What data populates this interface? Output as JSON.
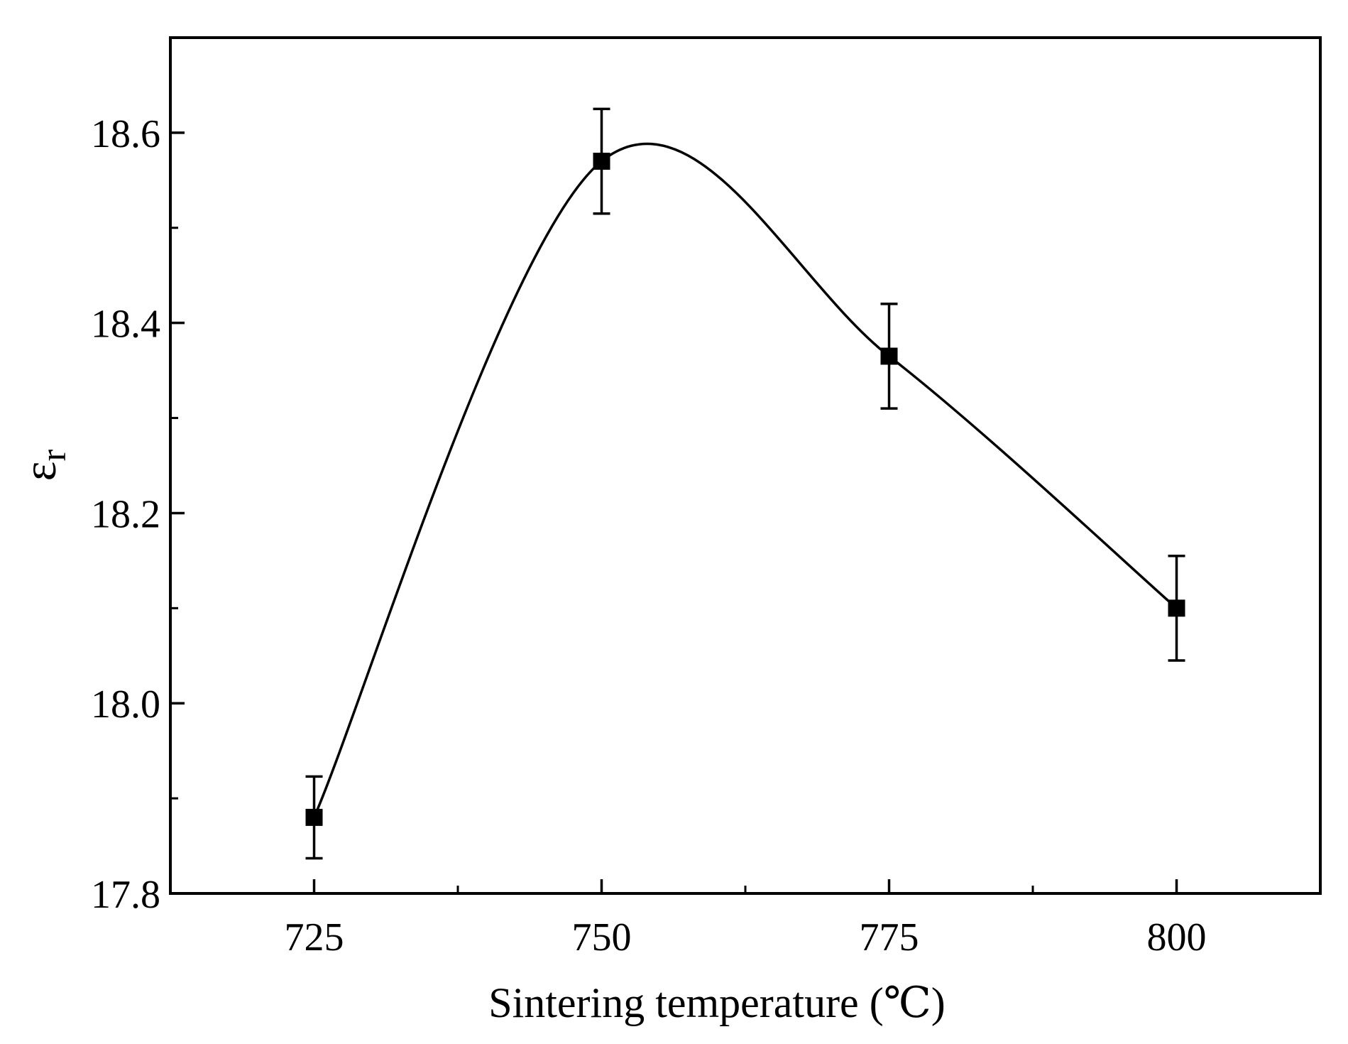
{
  "chart_data": {
    "type": "line",
    "title": "",
    "xlabel": "Sintering temperature (℃)",
    "ylabel": "ε",
    "ylabel_subscript": "r",
    "xlim": [
      712.5,
      812.5
    ],
    "ylim": [
      17.8,
      18.7
    ],
    "xticks": [
      725,
      750,
      775,
      800
    ],
    "xtick_labels": [
      "725",
      "750",
      "775",
      "800"
    ],
    "xminor_ticks": [
      737.5,
      762.5,
      787.5
    ],
    "yticks": [
      17.8,
      18.0,
      18.2,
      18.4,
      18.6
    ],
    "ytick_labels": [
      "17.8",
      "18.0",
      "18.2",
      "18.4",
      "18.6"
    ],
    "yminor_ticks": [
      17.9,
      18.1,
      18.3,
      18.5
    ],
    "grid": false,
    "legend": "none",
    "marker": "square",
    "line_style": "smooth spline",
    "series": [
      {
        "name": "εr",
        "x": [
          725,
          750,
          775,
          800
        ],
        "y": [
          17.88,
          18.57,
          18.365,
          18.1
        ],
        "error": [
          0.043,
          0.055,
          0.055,
          0.055
        ]
      }
    ]
  }
}
